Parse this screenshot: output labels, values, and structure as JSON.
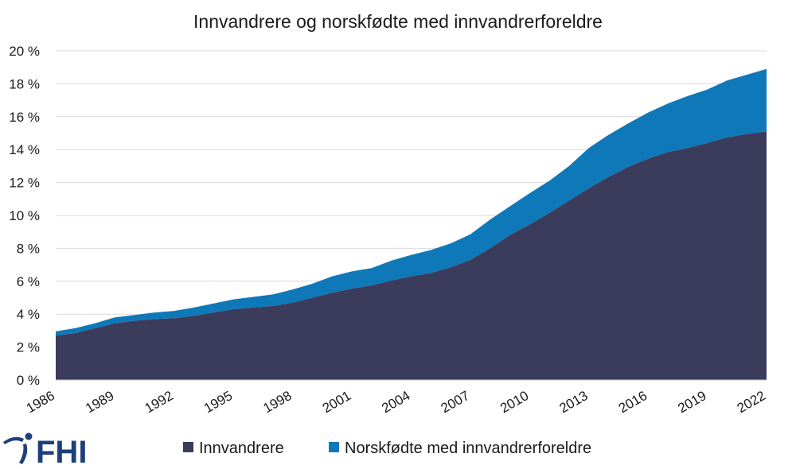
{
  "chart_data": {
    "type": "area",
    "stacked": true,
    "title": "Innvandrere og norskfødte med innvandrerforeldre",
    "xlabel": "",
    "ylabel": "",
    "ylim": [
      0,
      20
    ],
    "y_ticks": [
      "0 %",
      "2 %",
      "4 %",
      "6 %",
      "8 %",
      "10 %",
      "12 %",
      "14 %",
      "16 %",
      "18 %",
      "20 %"
    ],
    "x_tick_labels": [
      "1986",
      "1989",
      "1992",
      "1995",
      "1998",
      "2001",
      "2004",
      "2007",
      "2010",
      "2013",
      "2016",
      "2019",
      "2022"
    ],
    "grid": "horizontal",
    "legend_position": "bottom",
    "x": [
      1986,
      1987,
      1988,
      1989,
      1990,
      1991,
      1992,
      1993,
      1994,
      1995,
      1996,
      1997,
      1998,
      1999,
      2000,
      2001,
      2002,
      2003,
      2004,
      2005,
      2006,
      2007,
      2008,
      2009,
      2010,
      2011,
      2012,
      2013,
      2014,
      2015,
      2016,
      2017,
      2018,
      2019,
      2020,
      2021,
      2022
    ],
    "series": [
      {
        "name": "Innvandrere",
        "color": "#3b3b5c",
        "values": [
          2.7,
          2.85,
          3.15,
          3.45,
          3.6,
          3.7,
          3.75,
          3.9,
          4.1,
          4.3,
          4.4,
          4.5,
          4.7,
          5.0,
          5.3,
          5.55,
          5.75,
          6.05,
          6.3,
          6.5,
          6.85,
          7.3,
          8.0,
          8.8,
          9.45,
          10.15,
          10.9,
          11.65,
          12.35,
          12.95,
          13.45,
          13.85,
          14.1,
          14.4,
          14.75,
          14.95,
          15.1
        ]
      },
      {
        "name": "Norskfødte med innvandrerforeldre",
        "color": "#0f78b8",
        "values": [
          0.25,
          0.3,
          0.3,
          0.35,
          0.35,
          0.4,
          0.45,
          0.5,
          0.55,
          0.6,
          0.65,
          0.7,
          0.8,
          0.85,
          1.0,
          1.05,
          1.05,
          1.2,
          1.3,
          1.4,
          1.45,
          1.55,
          1.75,
          1.75,
          1.9,
          1.95,
          2.1,
          2.45,
          2.55,
          2.65,
          2.8,
          2.95,
          3.15,
          3.25,
          3.45,
          3.6,
          3.8
        ]
      }
    ]
  },
  "logo": {
    "text": "FHI",
    "color": "#1f3f7a",
    "icon": "fhi-logo-icon"
  }
}
